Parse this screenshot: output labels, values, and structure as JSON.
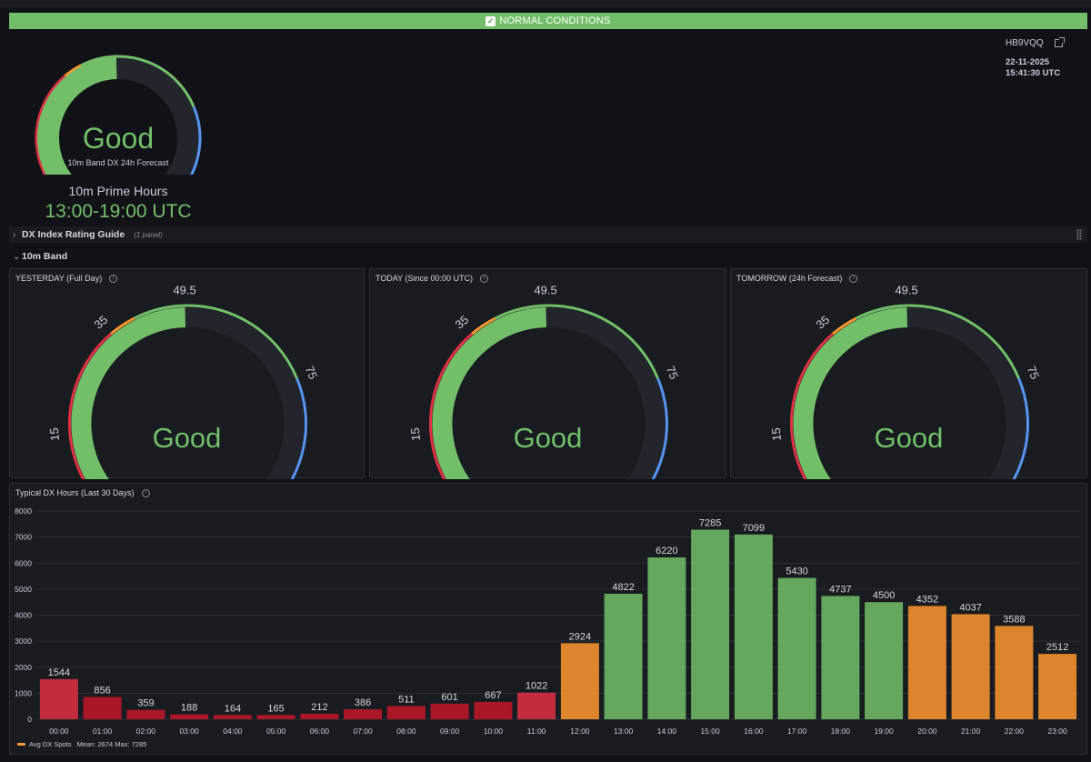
{
  "banner": {
    "text": "NORMAL CONDITIONS",
    "check": "✓"
  },
  "hero": {
    "gauge_value": "Good",
    "gauge_caption": "10m Band DX 24h Forecast",
    "level": 49.5,
    "max": 100,
    "prime_label": "10m Prime Hours",
    "prime_value": "13:00-19:00 UTC"
  },
  "station": {
    "callsign": "HB9VQQ",
    "date": "22-11-2025",
    "time": "15:41:30 UTC"
  },
  "rows": {
    "guide": {
      "title": "DX Index Rating Guide",
      "count": "(1 panel)"
    },
    "band": {
      "title": "10m Band"
    }
  },
  "gauges": [
    {
      "title": "YESTERDAY (Full Day)",
      "value": 49.5,
      "value_label": "49.5",
      "status": "Good"
    },
    {
      "title": "TODAY (Since 00:00 UTC)",
      "value": 49.5,
      "value_label": "49.5",
      "status": "Good"
    },
    {
      "title": "TOMORROW (24h Forecast)",
      "value": 49.5,
      "value_label": "49.5",
      "status": "Good"
    }
  ],
  "gauge_scale": {
    "min": 0,
    "max": 100,
    "ticks": [
      "0",
      "15",
      "35",
      "75",
      "100"
    ],
    "thresholds": [
      {
        "from": 0,
        "to": 15,
        "color": "#e02f44"
      },
      {
        "from": 15,
        "to": 35,
        "color": "#e02f44"
      },
      {
        "from": 35,
        "to": 40,
        "color": "#ff9830"
      },
      {
        "from": 40,
        "to": 75,
        "color": "#73bf69"
      },
      {
        "from": 75,
        "to": 100,
        "color": "#5794f2"
      }
    ]
  },
  "colors": {
    "good": "#73bf69",
    "fair": "#ff9830",
    "poor": "#c4162a",
    "poor_light": "#e02f44",
    "excellent": "#5794f2"
  },
  "chart_panel_title": "Typical DX Hours (Last 30 Days)",
  "legend": {
    "name": "Avg DX Spots",
    "stats": "Mean: 2674  Max: 7285"
  },
  "chart_data": {
    "type": "bar",
    "title": "Typical DX Hours (Last 30 Days)",
    "categories": [
      "00:00",
      "01:00",
      "02:00",
      "03:00",
      "04:00",
      "05:00",
      "06:00",
      "07:00",
      "08:00",
      "09:00",
      "10:00",
      "11:00",
      "12:00",
      "13:00",
      "14:00",
      "15:00",
      "16:00",
      "17:00",
      "18:00",
      "19:00",
      "20:00",
      "21:00",
      "22:00",
      "23:00"
    ],
    "series": [
      {
        "name": "Avg DX Spots",
        "values": [
          1544,
          856,
          359,
          188,
          164,
          165,
          212,
          386,
          511,
          601,
          667,
          1022,
          2924,
          4822,
          6220,
          7285,
          7099,
          5430,
          4737,
          4500,
          4352,
          4037,
          3588,
          2512
        ]
      }
    ],
    "bar_colors": [
      "#e02f44",
      "#c4162a",
      "#c4162a",
      "#c4162a",
      "#c4162a",
      "#c4162a",
      "#c4162a",
      "#c4162a",
      "#c4162a",
      "#c4162a",
      "#c4162a",
      "#e02f44",
      "#ff9830",
      "#73bf69",
      "#73bf69",
      "#73bf69",
      "#73bf69",
      "#73bf69",
      "#73bf69",
      "#73bf69",
      "#ff9830",
      "#ff9830",
      "#ff9830",
      "#ff9830"
    ],
    "ylim": [
      0,
      8000
    ],
    "yticks": [
      0,
      1000,
      2000,
      3000,
      4000,
      5000,
      6000,
      7000,
      8000
    ],
    "xlabel": "",
    "ylabel": "",
    "grid": true,
    "legend": "bottom-left"
  }
}
